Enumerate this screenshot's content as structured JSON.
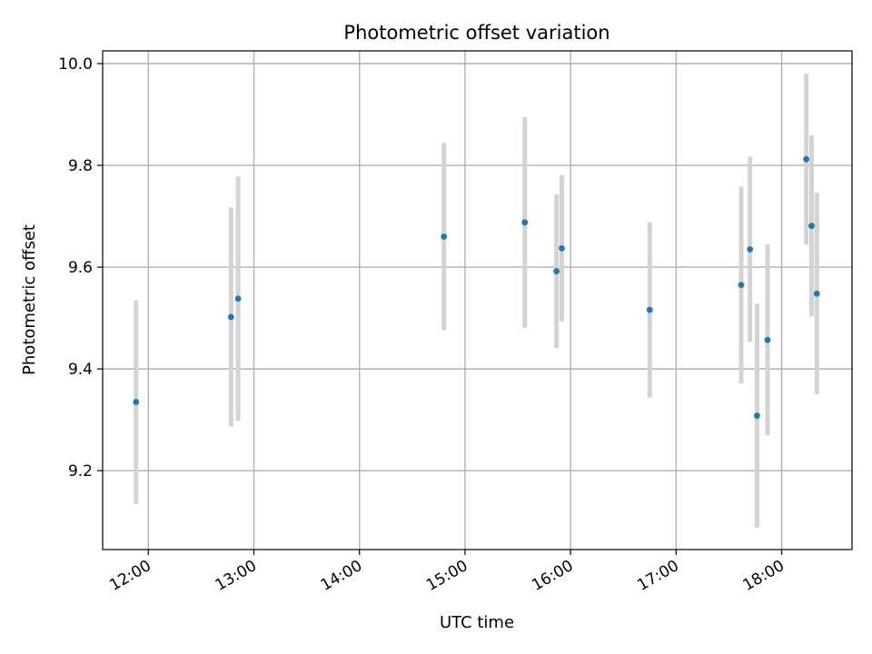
{
  "chart_data": {
    "type": "scatter",
    "title": "Photometric offset variation",
    "xlabel": "UTC time",
    "ylabel": "Photometric offset",
    "x_unit": "hours (UTC)",
    "xlim": [
      "11:34",
      "18:40"
    ],
    "ylim": [
      9.045,
      10.025
    ],
    "x_ticks": [
      "12:00",
      "13:00",
      "14:00",
      "15:00",
      "16:00",
      "17:00",
      "18:00"
    ],
    "y_ticks": [
      "9.2",
      "9.4",
      "9.6",
      "9.8",
      "10.0"
    ],
    "grid": true,
    "legend": "none",
    "colors": {
      "points": "#1f77b4",
      "errorbars": "#d3d3d3",
      "grid": "#b0b0b0"
    },
    "series": [
      {
        "points": [
          {
            "t": "11:53",
            "y": 9.335,
            "yerr": 0.2
          },
          {
            "t": "12:47",
            "y": 9.502,
            "yerr": 0.215
          },
          {
            "t": "12:51",
            "y": 9.538,
            "yerr": 0.24
          },
          {
            "t": "14:48",
            "y": 9.66,
            "yerr": 0.184
          },
          {
            "t": "15:34",
            "y": 9.688,
            "yerr": 0.207
          },
          {
            "t": "15:52",
            "y": 9.592,
            "yerr": 0.151
          },
          {
            "t": "15:55",
            "y": 9.637,
            "yerr": 0.144
          },
          {
            "t": "16:45",
            "y": 9.516,
            "yerr": 0.172
          },
          {
            "t": "17:37",
            "y": 9.565,
            "yerr": 0.193
          },
          {
            "t": "17:42",
            "y": 9.635,
            "yerr": 0.182
          },
          {
            "t": "17:46",
            "y": 9.308,
            "yerr": 0.22
          },
          {
            "t": "17:52",
            "y": 9.457,
            "yerr": 0.188
          },
          {
            "t": "18:14",
            "y": 9.812,
            "yerr": 0.168
          },
          {
            "t": "18:17",
            "y": 9.681,
            "yerr": 0.178
          },
          {
            "t": "18:20",
            "y": 9.548,
            "yerr": 0.198
          }
        ]
      }
    ]
  }
}
